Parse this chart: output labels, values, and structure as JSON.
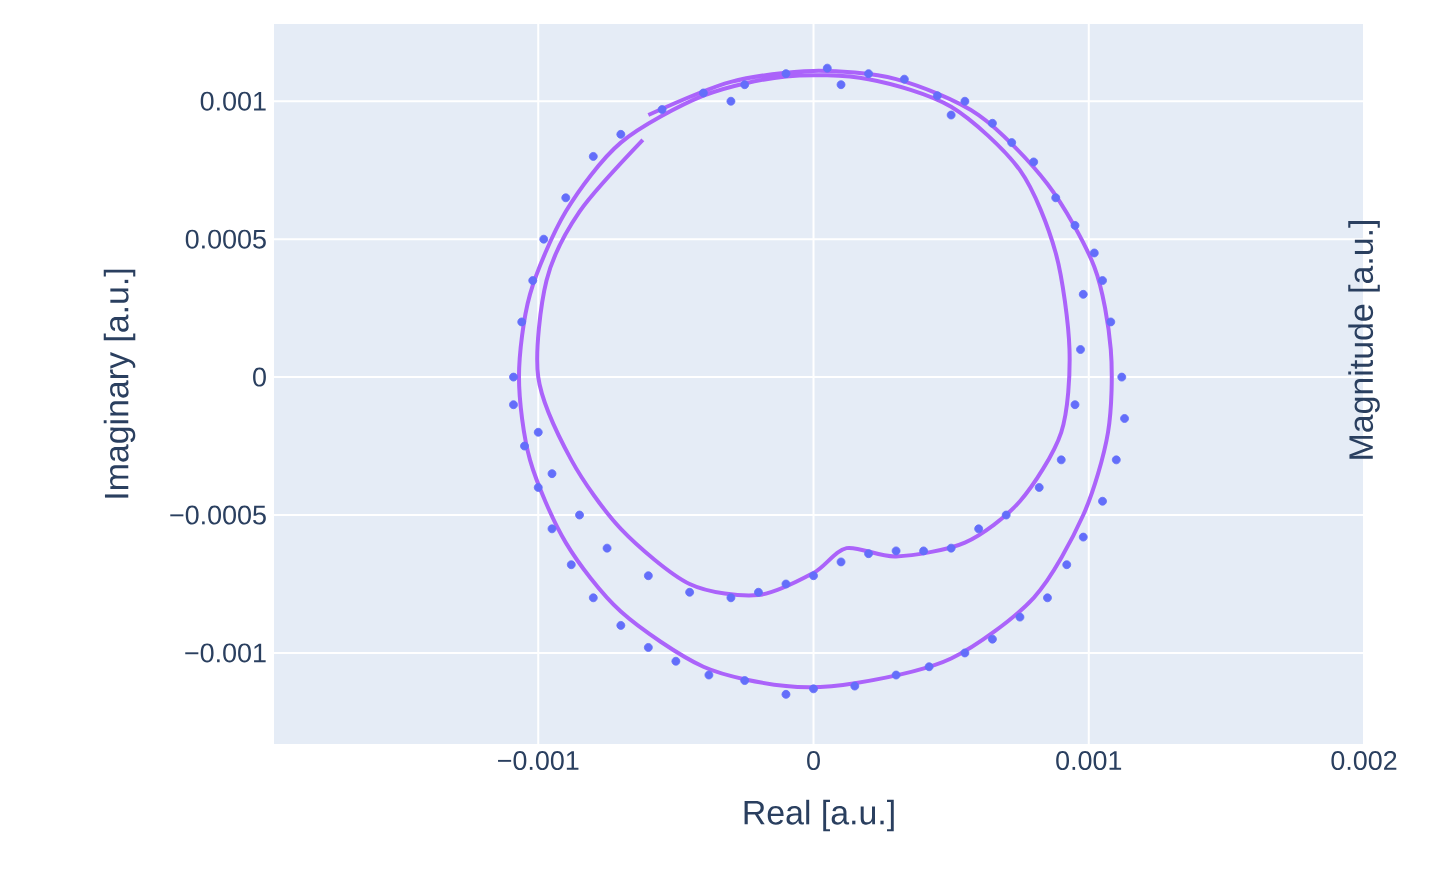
{
  "chart_data": {
    "type": "scatter",
    "xlabel": "Real [a.u.]",
    "ylabel": "Imaginary [a.u.]",
    "y2label": "Magnitude [a.u.]",
    "xlim": [
      -0.00196,
      0.002
    ],
    "ylim": [
      -0.00133,
      0.00128
    ],
    "xticks": [
      {
        "value": -0.001,
        "label": "−0.001"
      },
      0,
      0.001,
      0.002
    ],
    "yticks": [
      {
        "value": -0.001,
        "label": "−0.001"
      },
      {
        "value": -0.0005,
        "label": "−0.0005"
      },
      0,
      0.0005,
      0.001
    ],
    "grid": true,
    "series": [
      {
        "marker": "circle",
        "color": "#636efa",
        "x": [
          -0.0007,
          -0.00055,
          -0.0004,
          -0.00025,
          -0.0001,
          5e-05,
          0.0002,
          0.00033,
          0.00045,
          0.00055,
          0.00065,
          0.00072,
          0.0008,
          0.00088,
          0.00095,
          0.00102,
          0.00105,
          0.00108,
          0.00112,
          0.00113,
          0.0011,
          0.00105,
          0.00098,
          0.00092,
          0.00085,
          0.00075,
          0.00065,
          0.00055,
          0.00042,
          0.0003,
          0.00015,
          0.0,
          -0.0001,
          -0.00025,
          -0.00038,
          -0.0005,
          -0.0006,
          -0.0007,
          -0.0008,
          -0.00088,
          -0.00095,
          -0.001,
          -0.00105,
          -0.00109,
          -0.00109,
          -0.00106,
          -0.00102,
          -0.00098,
          -0.0009,
          -0.0008,
          0.00098,
          0.00097,
          0.00095,
          0.0009,
          0.00082,
          0.0007,
          0.0006,
          0.0005,
          0.0004,
          0.0003,
          0.0002,
          0.0001,
          0.0,
          -0.0001,
          -0.0002,
          -0.0003,
          -0.00045,
          -0.0006,
          -0.00075,
          -0.00085,
          -0.00095,
          -0.001,
          -0.0003,
          0.0001,
          0.0005
        ],
        "values": [
          0.00088,
          0.00097,
          0.00103,
          0.00106,
          0.0011,
          0.00112,
          0.0011,
          0.00108,
          0.00102,
          0.001,
          0.00092,
          0.00085,
          0.00078,
          0.00065,
          0.00055,
          0.00045,
          0.00035,
          0.0002,
          0.0,
          -0.00015,
          -0.0003,
          -0.00045,
          -0.00058,
          -0.00068,
          -0.0008,
          -0.00087,
          -0.00095,
          -0.001,
          -0.00105,
          -0.00108,
          -0.00112,
          -0.00113,
          -0.00115,
          -0.0011,
          -0.00108,
          -0.00103,
          -0.00098,
          -0.0009,
          -0.0008,
          -0.00068,
          -0.00055,
          -0.0004,
          -0.00025,
          -0.0001,
          0.0,
          0.0002,
          0.00035,
          0.0005,
          0.00065,
          0.0008,
          0.0003,
          0.0001,
          -0.0001,
          -0.0003,
          -0.0004,
          -0.0005,
          -0.00055,
          -0.00062,
          -0.00063,
          -0.00063,
          -0.00064,
          -0.00067,
          -0.00072,
          -0.00075,
          -0.00078,
          -0.0008,
          -0.00078,
          -0.00072,
          -0.00062,
          -0.0005,
          -0.00035,
          -0.0002,
          0.001,
          0.00106,
          0.00095
        ]
      },
      {
        "type": "line",
        "marker": "none",
        "color": "#ab63fa",
        "x": [
          -0.0006,
          -0.0003,
          0.0,
          0.0003,
          0.0006,
          0.00085,
          0.00102,
          0.00108,
          0.00107,
          0.00098,
          0.0008,
          0.0005,
          0.00015,
          -0.0001,
          -0.0004,
          -0.0007,
          -0.0009,
          -0.00103,
          -0.00107,
          -0.00103,
          -0.0009,
          -0.0007,
          -0.0004,
          -0.0001,
          0.0002,
          0.0005,
          0.00075,
          0.00088,
          0.00093,
          0.0009,
          0.00075,
          0.00055,
          0.0003,
          0.00012,
          0.0,
          -0.0002,
          -0.00045,
          -0.0007,
          -0.00088,
          -0.001,
          -0.00097,
          -0.00085,
          -0.00062
        ],
        "values": [
          0.00095,
          0.00107,
          0.00111,
          0.00108,
          0.00095,
          0.0007,
          0.0004,
          0.0001,
          -0.0002,
          -0.0005,
          -0.0008,
          -0.00102,
          -0.00111,
          -0.00112,
          -0.00105,
          -0.00085,
          -0.0006,
          -0.0003,
          0.0,
          0.0003,
          0.0006,
          0.00085,
          0.00102,
          0.00109,
          0.00108,
          0.00098,
          0.00075,
          0.00045,
          0.0001,
          -0.0002,
          -0.00045,
          -0.0006,
          -0.00065,
          -0.00062,
          -0.00071,
          -0.00079,
          -0.00075,
          -0.00055,
          -0.0003,
          0.0,
          0.00035,
          0.0006,
          0.00086
        ]
      }
    ]
  }
}
